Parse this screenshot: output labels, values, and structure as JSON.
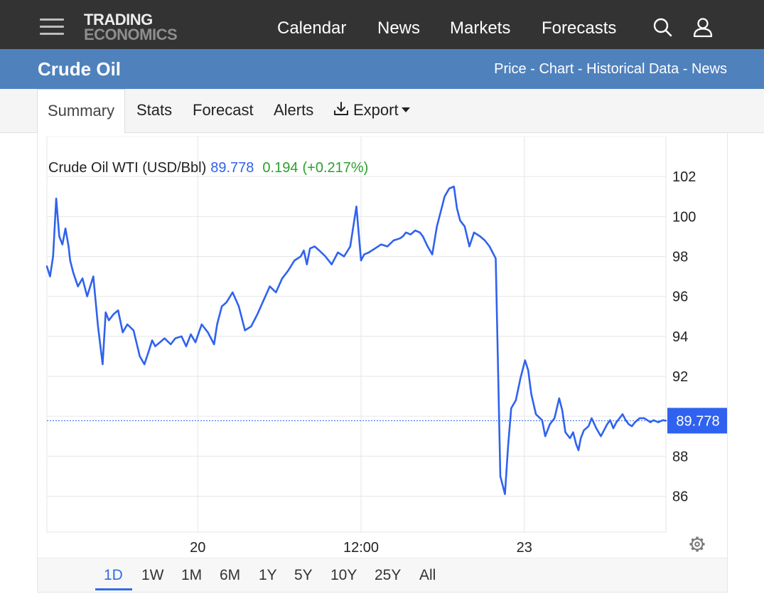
{
  "header": {
    "logo_line1": "TRADING",
    "logo_line2": "ECONOMICS",
    "nav": [
      "Calendar",
      "News",
      "Markets",
      "Forecasts"
    ],
    "search_icon": "search-icon",
    "user_icon": "user-icon",
    "menu_icon": "hamburger-menu-icon"
  },
  "title_bar": {
    "title": "Crude Oil",
    "links": [
      "Price",
      "Chart",
      "Historical Data",
      "News"
    ],
    "separator": " - "
  },
  "tabs": {
    "items": [
      "Summary",
      "Stats",
      "Forecast",
      "Alerts",
      "Export"
    ],
    "active": "Summary",
    "export_icon": "download-icon"
  },
  "chart_header": {
    "name": "Crude Oil WTI (USD/Bbl)",
    "price": "89.778",
    "change": "0.194",
    "change_pct": "(+0.217%)"
  },
  "colors": {
    "line": "#2f62ee",
    "price_text": "#2f62ee",
    "change_text": "#2ca02c",
    "topbar": "#333333",
    "title_bar": "#4f81bd",
    "price_badge": "#2f62ee"
  },
  "chart_data": {
    "type": "line",
    "series": [
      {
        "x": [
          0.0,
          0.2,
          0.4,
          0.6,
          0.8,
          1.0,
          1.2,
          1.4,
          1.5,
          1.7,
          2.0,
          2.3,
          2.6,
          3.0,
          3.3,
          3.6,
          3.8,
          4.0,
          4.3,
          4.6,
          4.9,
          5.2,
          5.6,
          6.0,
          6.3,
          6.6,
          6.8,
          7.0,
          7.3,
          7.6,
          8.0,
          8.3,
          8.7,
          9.0,
          9.3,
          9.6,
          10.0,
          10.4,
          10.8,
          11.0,
          11.3,
          11.6,
          12.0,
          12.4,
          12.8,
          13.2,
          13.6,
          14.0,
          14.4,
          14.8,
          15.2,
          15.6,
          16.0,
          16.4,
          16.6,
          16.8,
          17.0,
          17.3,
          17.6,
          18.0,
          18.4,
          18.8,
          19.2,
          19.6,
          20.0,
          20.3,
          20.5,
          20.8,
          21.2,
          21.6,
          22.0,
          22.4,
          22.8,
          23.0,
          23.2,
          23.5,
          23.8,
          24.1,
          24.3,
          24.6,
          24.9,
          25.2,
          25.5,
          25.7,
          26.0,
          26.3,
          26.5,
          26.7,
          27.0,
          27.3,
          27.6,
          28.0,
          28.3,
          28.6,
          29.0,
          29.3,
          29.6,
          29.8,
          30.0,
          30.3,
          30.6,
          30.9,
          31.1,
          31.3,
          31.6,
          32.0,
          32.2,
          32.5,
          32.8,
          33.1,
          33.3,
          33.5,
          33.8,
          34.0,
          34.2,
          34.35,
          34.5,
          34.7,
          35.0,
          35.2,
          35.5,
          35.8,
          36.0,
          36.2,
          36.4,
          36.6,
          36.8,
          37.0,
          37.2,
          37.4,
          37.6,
          37.8,
          38.0,
          38.3,
          38.6,
          38.8,
          39.0,
          39.2,
          39.5,
          39.8,
          40.0
        ],
        "y": [
          97.5,
          97.0,
          98.0,
          100.9,
          99.0,
          98.6,
          99.4,
          98.5,
          97.8,
          97.2,
          96.5,
          96.9,
          96.0,
          97.0,
          94.5,
          92.6,
          95.2,
          94.8,
          95.1,
          95.3,
          94.2,
          94.6,
          94.3,
          93.0,
          92.6,
          93.3,
          93.8,
          93.5,
          93.7,
          93.9,
          93.6,
          93.9,
          94.0,
          93.5,
          94.1,
          93.7,
          94.6,
          94.2,
          93.6,
          94.6,
          95.5,
          95.7,
          96.2,
          95.5,
          94.3,
          94.5,
          95.1,
          95.8,
          96.5,
          96.2,
          96.9,
          97.3,
          97.8,
          98.0,
          98.3,
          97.6,
          98.4,
          98.5,
          98.3,
          98.0,
          97.6,
          98.2,
          98.0,
          98.5,
          100.5,
          97.8,
          98.1,
          98.2,
          98.4,
          98.6,
          98.5,
          98.8,
          98.9,
          99.0,
          99.2,
          99.1,
          99.3,
          99.2,
          99.0,
          98.5,
          98.1,
          99.5,
          100.4,
          101.0,
          101.4,
          101.5,
          100.4,
          99.8,
          99.5,
          98.5,
          99.2,
          99.0,
          98.8,
          98.5,
          97.9,
          87.0,
          86.1,
          88.5,
          90.4,
          90.8,
          91.9,
          92.8,
          92.3,
          91.1,
          90.1,
          89.8,
          89.0,
          89.6,
          89.9,
          90.9,
          90.3,
          89.2,
          88.9,
          89.2,
          88.6,
          88.3,
          88.9,
          89.3,
          89.5,
          89.9,
          89.4,
          89.0,
          89.3,
          89.6,
          89.8,
          89.4,
          89.7,
          89.9,
          90.1,
          89.8,
          89.6,
          89.5,
          89.7,
          89.9,
          89.9,
          89.8,
          89.7,
          89.8,
          89.7,
          89.8,
          89.78
        ]
      }
    ],
    "x_ticks": [
      {
        "x": 9.75,
        "label": "20"
      },
      {
        "x": 20.3,
        "label": "12:00"
      },
      {
        "x": 30.85,
        "label": "23"
      }
    ],
    "y_ticks": [
      86,
      88,
      90,
      92,
      94,
      96,
      98,
      100,
      102
    ],
    "y_tick_labels": [
      "86",
      "88",
      "",
      "92",
      "94",
      "96",
      "98",
      "100",
      "102"
    ],
    "xlim": [
      0,
      40
    ],
    "ylim": [
      84.2,
      104.0
    ],
    "last_value_label": "89.778",
    "last_value": 89.778,
    "grid": true,
    "xlabel": "",
    "ylabel": ""
  },
  "range_buttons": {
    "items": [
      "1D",
      "1W",
      "1M",
      "6M",
      "1Y",
      "5Y",
      "10Y",
      "25Y",
      "All"
    ],
    "active": "1D"
  },
  "settings_icon": "gear-icon"
}
